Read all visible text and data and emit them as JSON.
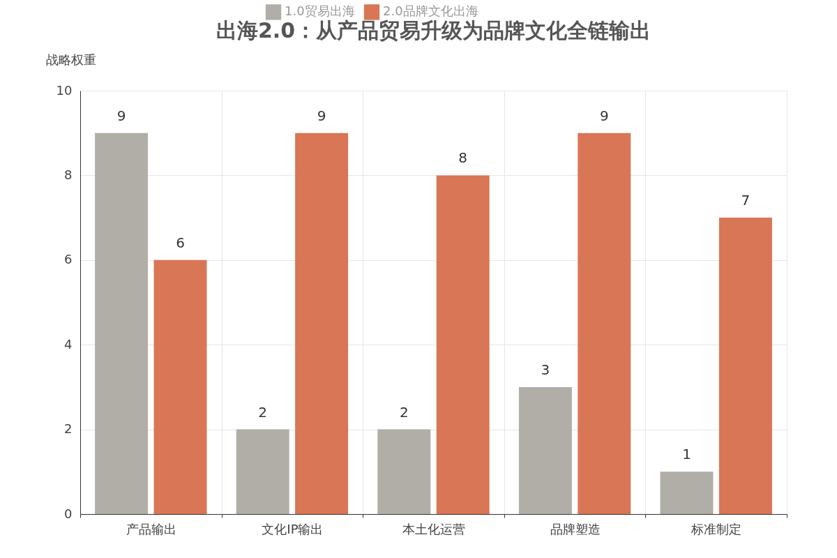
{
  "chart_data": {
    "type": "bar",
    "title": "出海2.0：从产品贸易升级为品牌文化全链输出",
    "ylabel": "战略权重",
    "categories": [
      "产品输出",
      "文化IP输出",
      "本土化运营",
      "品牌塑造",
      "标准制定"
    ],
    "series": [
      {
        "name": "1.0贸易出海",
        "color": "#b0aea6",
        "values": [
          9,
          2,
          2,
          3,
          1
        ]
      },
      {
        "name": "2.0品牌文化出海",
        "color": "#d97656",
        "values": [
          6,
          9,
          8,
          9,
          7
        ]
      }
    ],
    "ylim": [
      0,
      10
    ],
    "yticks": [
      0,
      2,
      4,
      6,
      8,
      10
    ],
    "grid": true,
    "legend": "top",
    "data_labels": true
  }
}
